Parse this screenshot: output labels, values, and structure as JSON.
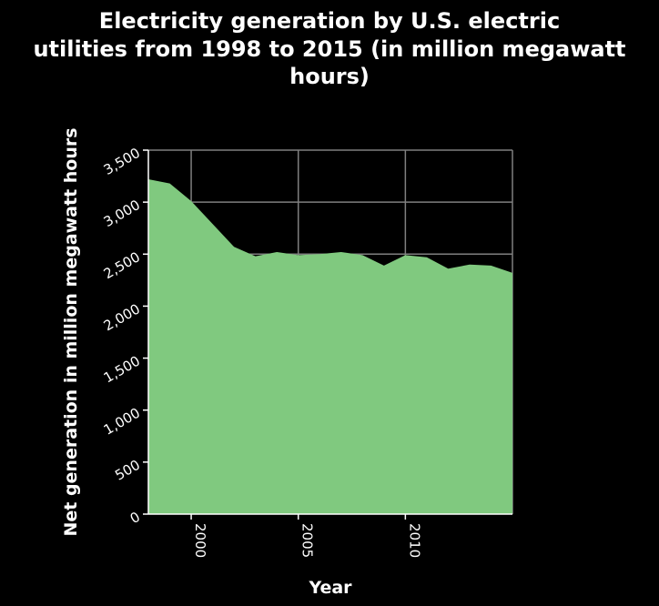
{
  "chart_data": {
    "type": "area",
    "title_lines": [
      "Electricity generation by U.S. electric",
      "utilities from 1998 to 2015 (in million megawatt",
      "hours)"
    ],
    "xlabel": "Year",
    "ylabel": "Net generation in million megawatt hours",
    "x": [
      1998,
      1999,
      2000,
      2001,
      2002,
      2003,
      2004,
      2005,
      2006,
      2007,
      2008,
      2009,
      2010,
      2011,
      2012,
      2013,
      2014,
      2015
    ],
    "values": [
      3220,
      3180,
      3010,
      2790,
      2570,
      2480,
      2520,
      2490,
      2500,
      2520,
      2490,
      2390,
      2490,
      2470,
      2360,
      2400,
      2390,
      2320
    ],
    "xlim": [
      1998,
      2015
    ],
    "ylim": [
      0,
      3500
    ],
    "x_ticks": [
      2000,
      2005,
      2010
    ],
    "x_tick_labels": [
      "2000",
      "2005",
      "2010"
    ],
    "y_ticks": [
      0,
      500,
      1000,
      1500,
      2000,
      2500,
      3000,
      3500
    ],
    "y_tick_labels": [
      "0",
      "500",
      "1,000",
      "1,500",
      "2,000",
      "2,500",
      "3,000",
      "3,500"
    ],
    "grid": true,
    "legend": "none",
    "colors": {
      "background": "#000000",
      "fill": "#80c97f",
      "grid": "#7f7f7f",
      "text": "#ffffff"
    }
  }
}
